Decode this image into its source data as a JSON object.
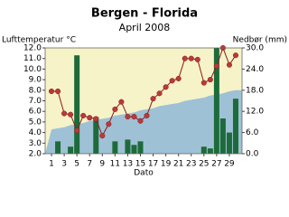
{
  "chart_data": {
    "type": "combo",
    "title": "Bergen - Florida",
    "subtitle": "April 2008",
    "ylabel": "Lufttemperatur °C",
    "y2label": "Nedbør (mm)",
    "xlabel": "Dato",
    "x": [
      1,
      2,
      3,
      4,
      5,
      6,
      7,
      8,
      9,
      10,
      11,
      12,
      13,
      14,
      15,
      16,
      17,
      18,
      19,
      20,
      21,
      22,
      23,
      24,
      25,
      26,
      27,
      28,
      29,
      30
    ],
    "xlim": [
      0,
      31
    ],
    "xticks": [
      1,
      3,
      5,
      7,
      9,
      11,
      13,
      15,
      17,
      19,
      21,
      23,
      25,
      27,
      29
    ],
    "ylim": [
      2,
      12
    ],
    "yticks": [
      {
        "value": 2,
        "label": "2.0"
      },
      {
        "value": 3,
        "label": "3.0"
      },
      {
        "value": 4,
        "label": "4.0"
      },
      {
        "value": 5,
        "label": "5.0"
      },
      {
        "value": 6,
        "label": "6.0"
      },
      {
        "value": 7,
        "label": "7.0"
      },
      {
        "value": 8,
        "label": "8.0"
      },
      {
        "value": 9,
        "label": "9.0"
      },
      {
        "value": 10,
        "label": "10.0"
      },
      {
        "value": 11,
        "label": "11.0"
      },
      {
        "value": 12,
        "label": "12.0"
      }
    ],
    "y2lim": [
      0,
      30
    ],
    "y2ticks": [
      {
        "value": 0,
        "label": "0.0"
      },
      {
        "value": 6,
        "label": "6.0"
      },
      {
        "value": 12,
        "label": "12.0"
      },
      {
        "value": 18,
        "label": "18.0"
      },
      {
        "value": 24,
        "label": "24.0"
      },
      {
        "value": 30,
        "label": "30.0"
      }
    ],
    "background": "#f6f3c9",
    "series": [
      {
        "type": "area",
        "color": "#9fc1d6",
        "values": [
          4.3,
          4.4,
          4.5,
          4.7,
          4.8,
          4.9,
          5.1,
          5.2,
          5.3,
          5.4,
          5.6,
          5.7,
          5.8,
          5.9,
          6.1,
          6.2,
          6.3,
          6.5,
          6.6,
          6.7,
          6.8,
          7.0,
          7.1,
          7.2,
          7.3,
          7.5,
          7.6,
          7.7,
          7.9,
          8.0
        ]
      },
      {
        "type": "bar",
        "axis": "y2",
        "color": "#1d6b3a",
        "values": [
          0,
          3.5,
          0,
          2.0,
          27.9,
          0,
          0,
          10.4,
          0,
          0,
          3.5,
          0,
          4.0,
          2.5,
          3.5,
          0,
          0,
          0,
          0,
          0,
          0,
          0,
          0,
          0,
          2.0,
          1.5,
          30,
          10,
          6.0,
          15.6
        ]
      },
      {
        "type": "line",
        "color": "#8b1a1a",
        "marker": "#b83a3a",
        "values": [
          7.9,
          7.9,
          5.8,
          5.7,
          4.2,
          5.6,
          5.4,
          5.3,
          3.7,
          4.8,
          6.2,
          6.9,
          5.5,
          5.5,
          5.1,
          5.6,
          7.2,
          7.7,
          8.3,
          8.9,
          9.1,
          11.0,
          11.0,
          10.9,
          8.7,
          9.0,
          10.3,
          12.0,
          10.4,
          11.3
        ]
      }
    ]
  }
}
